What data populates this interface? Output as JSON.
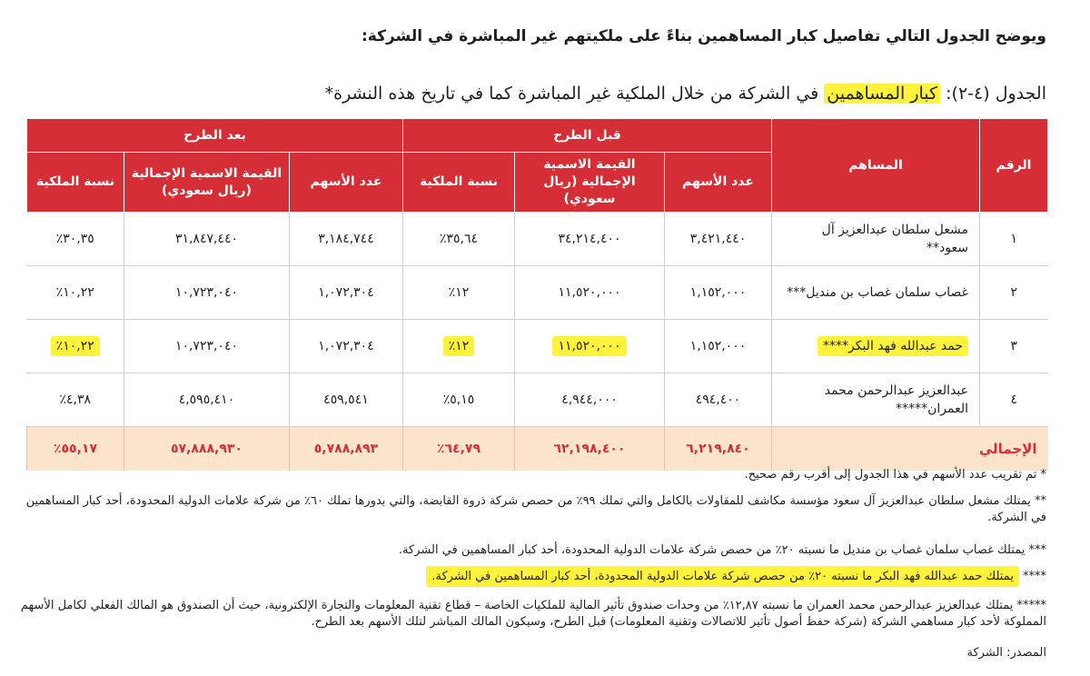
{
  "intro": "ويوضح الجدول التالي تفاصيل كبار المساهمين بناءً على ملكيتهم غير المباشرة في الشركة:",
  "caption": {
    "label": "الجدول (٤-٢):",
    "highlighted": "كبار المساهمين",
    "rest": "في الشركة من خلال الملكية غير المباشرة كما في تاريخ هذه النشرة*"
  },
  "table": {
    "headers": {
      "number": "الرقم",
      "shareholder": "المساهم",
      "before": "قبل الطرح",
      "after": "بعد الطرح",
      "shares": "عدد الأسهم",
      "nominal": "القيمة الاسمية الإجمالية (ريال سعودي)",
      "ownership": "نسبة الملكية"
    },
    "rows": [
      {
        "no": "١",
        "name": "مشعل سلطان عبدالعزيز آل سعود**",
        "pre_shares": "٣,٤٢١,٤٤٠",
        "pre_value": "٣٤,٢١٤,٤٠٠",
        "pre_pct": "٣٥,٦٤٪",
        "post_shares": "٣,١٨٤,٧٤٤",
        "post_value": "٣١,٨٤٧,٤٤٠",
        "post_pct": "٣٠,٣٥٪"
      },
      {
        "no": "٢",
        "name": "غصاب سلمان غصاب بن منديل***",
        "pre_shares": "١,١٥٢,٠٠٠",
        "pre_value": "١١,٥٢٠,٠٠٠",
        "pre_pct": "١٢٪",
        "post_shares": "١,٠٧٢,٣٠٤",
        "post_value": "١٠,٧٢٣,٠٤٠",
        "post_pct": "١٠,٢٢٪"
      },
      {
        "no": "٣",
        "name": "حمد عبدالله فهد البكر****",
        "pre_shares": "١,١٥٢,٠٠٠",
        "pre_value": "١١,٥٢٠,٠٠٠",
        "pre_pct": "١٢٪",
        "post_shares": "١,٠٧٢,٣٠٤",
        "post_value": "١٠,٧٢٣,٠٤٠",
        "post_pct": "١٠,٢٢٪"
      },
      {
        "no": "٤",
        "name": "عبدالعزيز عبدالرحمن محمد العمران*****",
        "pre_shares": "٤٩٤,٤٠٠",
        "pre_value": "٤,٩٤٤,٠٠٠",
        "pre_pct": "٥,١٥٪",
        "post_shares": "٤٥٩,٥٤١",
        "post_value": "٤,٥٩٥,٤١٠",
        "post_pct": "٤,٣٨٪"
      }
    ],
    "total": {
      "label": "الإجمالي",
      "pre_shares": "٦,٢١٩,٨٤٠",
      "pre_value": "٦٢,١٩٨,٤٠٠",
      "pre_pct": "٦٤,٧٩٪",
      "post_shares": "٥,٧٨٨,٨٩٣",
      "post_value": "٥٧,٨٨٨,٩٣٠",
      "post_pct": "٥٥,١٧٪"
    }
  },
  "notes": {
    "n1": "* تم تقريب عدد الأسهم في هذا الجدول إلى أقرب رقم صحيح.",
    "n2": "** يمتلك مشعل سلطان عبدالعزيز آل سعود مؤسسة مكاشف للمقاولات بالكامل والتي تملك ٩٩٪ من حصص شركة ذروة القابضة، والتي بدورها تملك ٦٠٪ من شركة علامات الدولية المحدودة، أحد كبار المساهمين في الشركة.",
    "n3": "*** يمتلك غصاب سلمان غصاب بن منديل ما نسبته ٢٠٪ من حصص شركة علامات الدولية المحدودة، أحد كبار المساهمين في الشركة.",
    "n4_stars": "****",
    "n4": "يمتلك حمد عبدالله فهد البكر ما نسبته ٢٠٪ من حصص شركة علامات الدولية المحدودة، أحد كبار المساهمين في الشركة.",
    "n5": "***** يمتلك عبدالعزيز عبدالرحمن محمد العمران ما نسبته ١٢,٨٧٪ من وحدات صندوق تأثير المالية للملكيات الخاصة – قطاع تقنية المعلومات والتجارة الإلكترونية، حيث أن الصندوق هو المالك الفعلي لكامل الأسهم المملوكة لأحد كبار مساهمي الشركة (شركة حفظ أصول تأثير للاتصالات وتقنية المعلومات) قبل الطرح، وسيكون المالك المباشر لتلك الأسهم بعد الطرح.",
    "source": "المصدر: الشركة"
  },
  "colors": {
    "header_red": "#d62e36",
    "total_bg": "#fbe3cc",
    "highlight": "#fff23a"
  }
}
